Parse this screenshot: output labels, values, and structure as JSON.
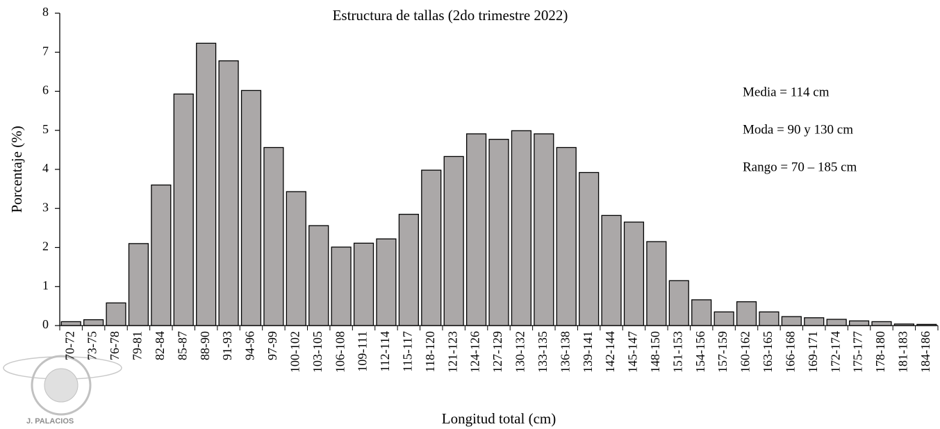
{
  "chart_data": {
    "type": "bar",
    "title": "Estructura de tallas (2do trimestre 2022)",
    "x_label": "Longitud total (cm)",
    "y_label": "Porcentaje (%)",
    "categories": [
      "70-72",
      "73-75",
      "76-78",
      "79-81",
      "82-84",
      "85-87",
      "88-90",
      "91-93",
      "94-96",
      "97-99",
      "100-102",
      "103-105",
      "106-108",
      "109-111",
      "112-114",
      "115-117",
      "118-120",
      "121-123",
      "124-126",
      "127-129",
      "130-132",
      "133-135",
      "136-138",
      "139-141",
      "142-144",
      "145-147",
      "148-150",
      "151-153",
      "154-156",
      "157-159",
      "160-162",
      "163-165",
      "166-168",
      "169-171",
      "172-174",
      "175-177",
      "178-180",
      "181-183",
      "184-186"
    ],
    "values": [
      0.1,
      0.15,
      0.58,
      2.1,
      3.6,
      5.93,
      7.23,
      6.78,
      6.02,
      4.56,
      3.43,
      2.56,
      2.01,
      2.11,
      2.22,
      2.85,
      3.98,
      4.33,
      4.91,
      4.77,
      4.99,
      4.91,
      4.56,
      3.92,
      2.82,
      2.65,
      2.15,
      1.15,
      0.66,
      0.35,
      0.61,
      0.35,
      0.23,
      0.2,
      0.16,
      0.12,
      0.1,
      0.04,
      0.03
    ],
    "color": "#aba8a8",
    "ylim": [
      0,
      8
    ],
    "yticks": [
      0,
      1,
      2,
      3,
      4,
      5,
      6,
      7,
      8
    ],
    "annotations": [
      "Media = 114  cm",
      "Moda = 90 y 130 cm",
      "Rango = 70 – 185 cm"
    ],
    "watermark": "J. PALACIOS"
  }
}
